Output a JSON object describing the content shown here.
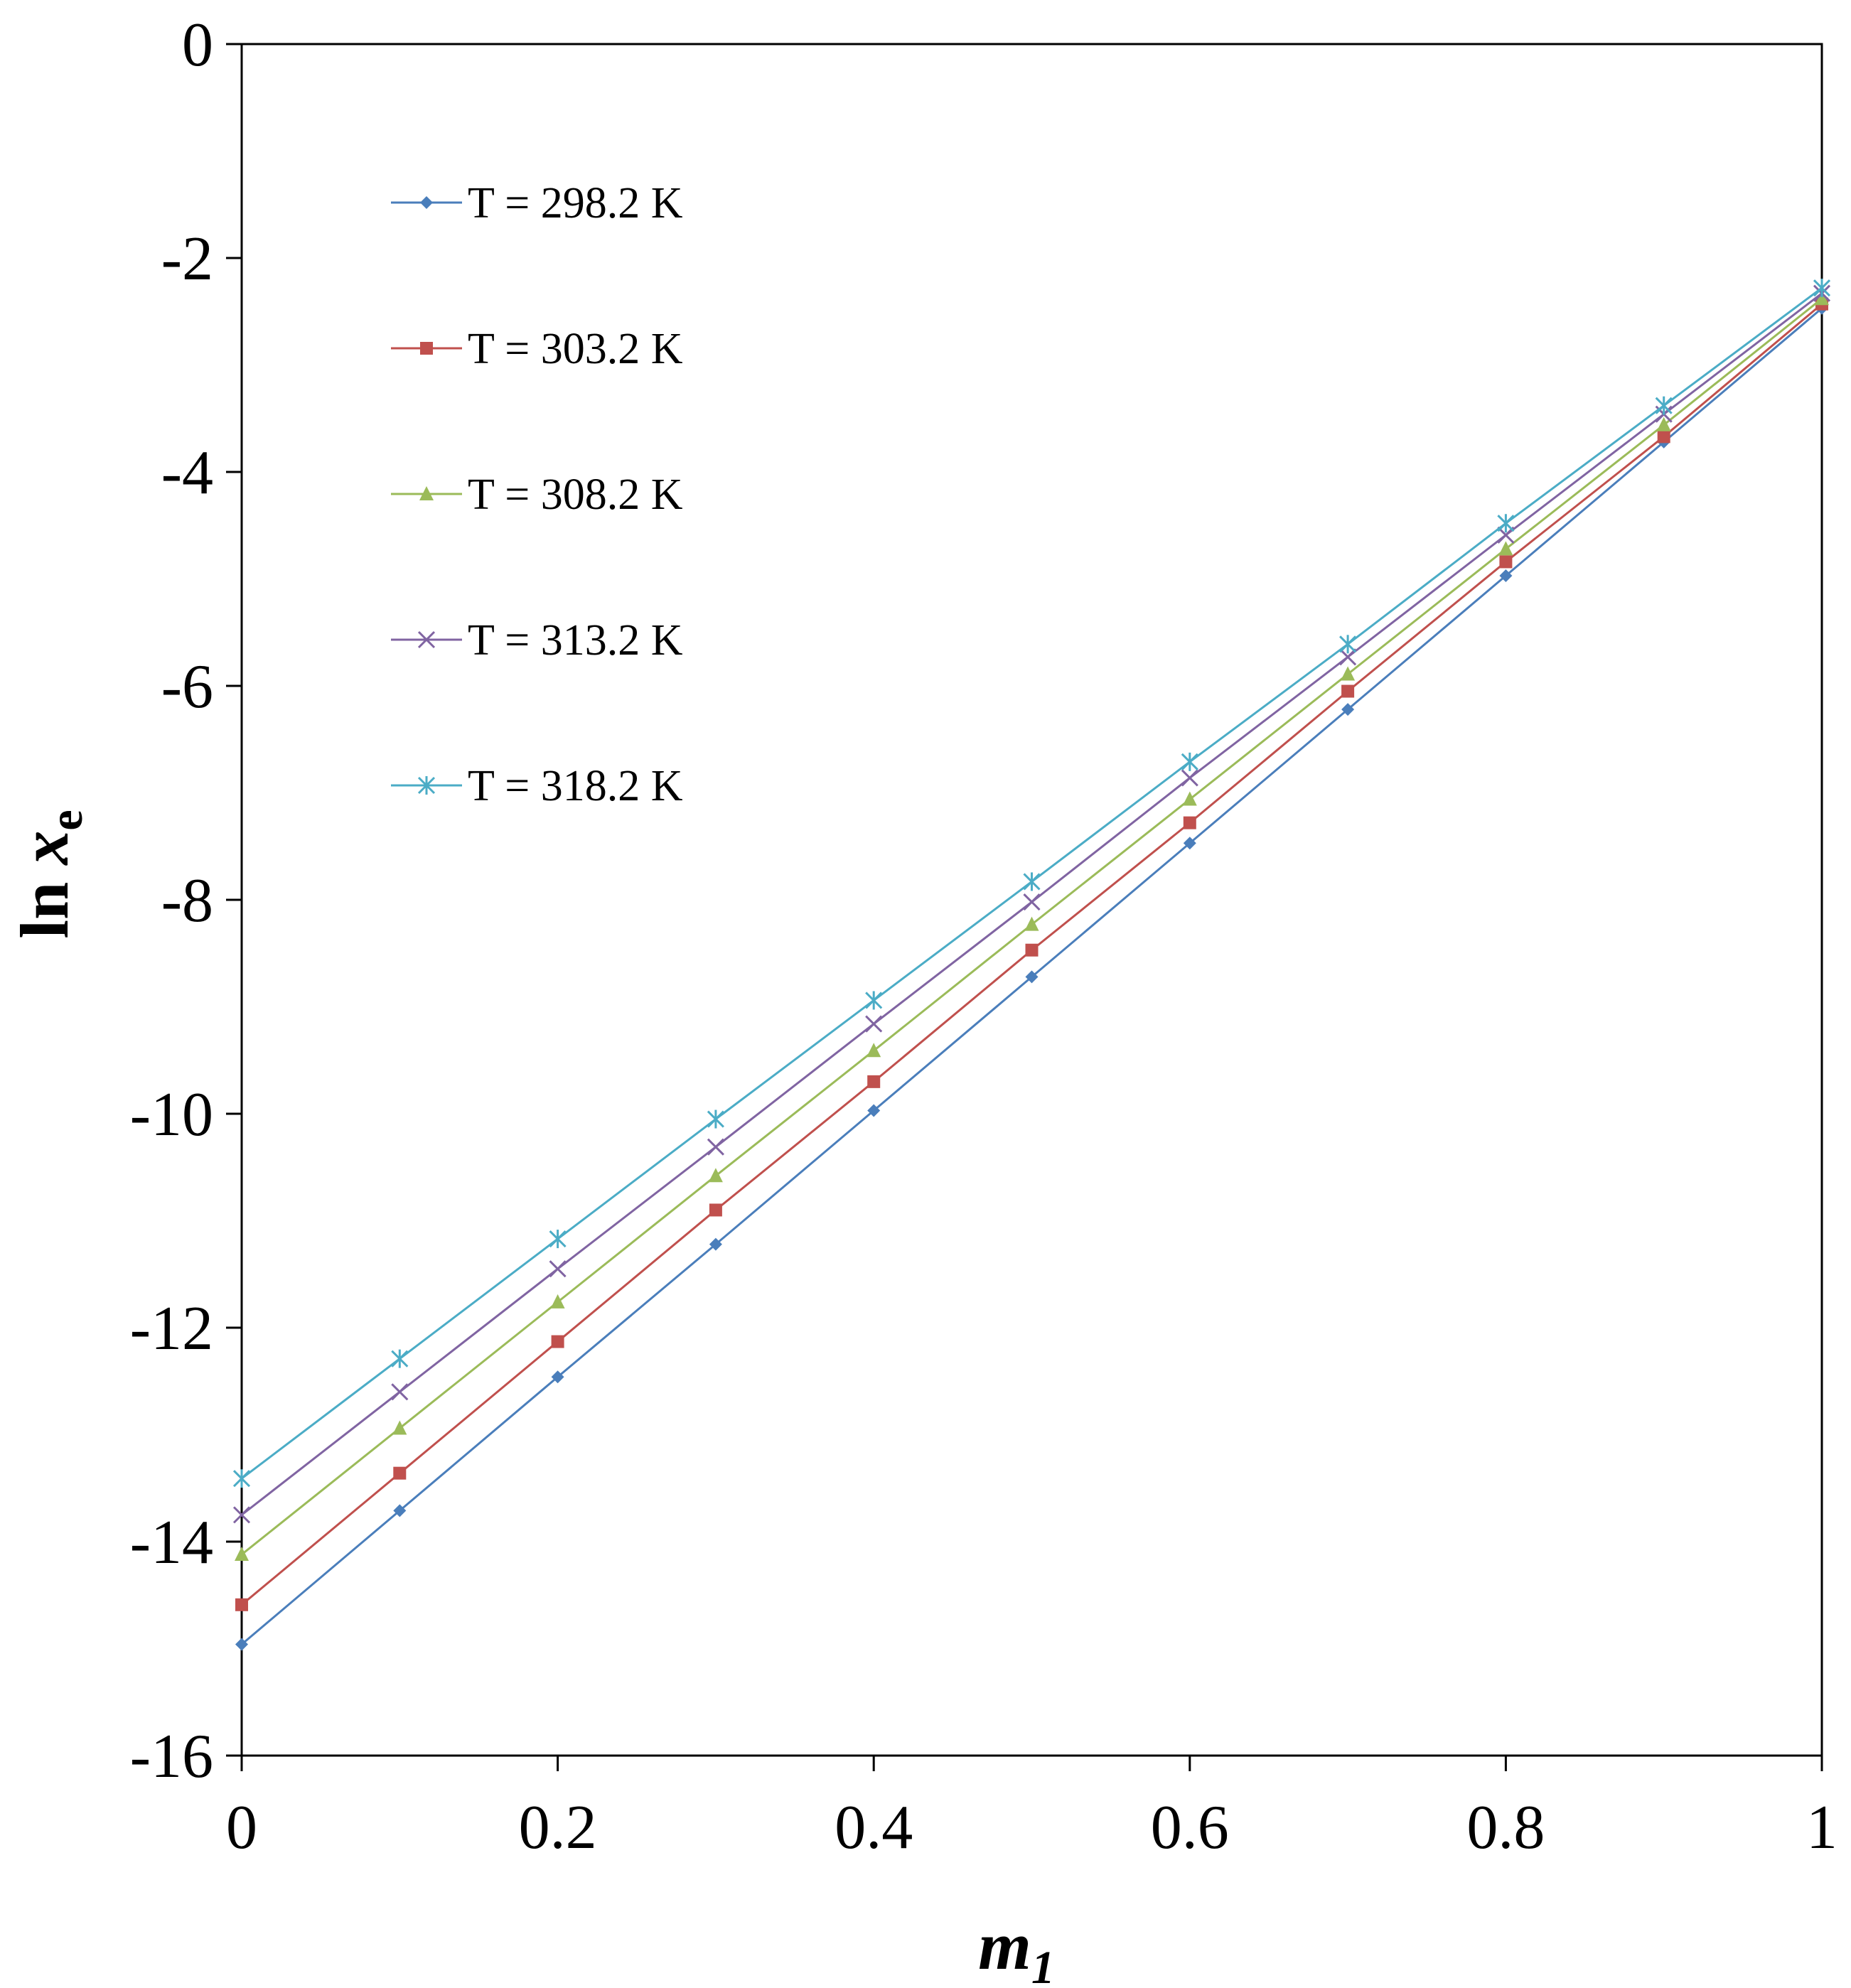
{
  "chart_data": {
    "type": "line",
    "title": "",
    "xlabel": "m1",
    "xlabel_main": "m",
    "xlabel_sub": "1",
    "ylabel": "ln xe",
    "ylabel_prefix": "ln ",
    "ylabel_var": "x",
    "ylabel_sub": "e",
    "xlim": [
      0,
      1
    ],
    "ylim": [
      -16,
      0
    ],
    "xticks": [
      0,
      0.2,
      0.4,
      0.6,
      0.8,
      1
    ],
    "xtick_labels": [
      "0",
      "0.2",
      "0.4",
      "0.6",
      "0.8",
      "1"
    ],
    "yticks": [
      0,
      -2,
      -4,
      -6,
      -8,
      -10,
      -12,
      -14,
      -16
    ],
    "ytick_labels": [
      "0",
      "-2",
      "-4",
      "-6",
      "-8",
      "-10",
      "-12",
      "-14",
      "-16"
    ],
    "grid": false,
    "legend_position": "top-left",
    "x": [
      0,
      0.1,
      0.2,
      0.3,
      0.4,
      0.5,
      0.6,
      0.7,
      0.8,
      0.9,
      1.0
    ],
    "series": [
      {
        "name": "T = 298.2 K",
        "color": "#4A7EBB",
        "marker": "diamond",
        "values": [
          -14.96,
          -13.71,
          -12.46,
          -11.22,
          -9.97,
          -8.72,
          -7.47,
          -6.22,
          -4.97,
          -3.72,
          -2.47
        ]
      },
      {
        "name": "T = 303.2 K",
        "color": "#C0504D",
        "marker": "square",
        "values": [
          -14.59,
          -13.36,
          -12.13,
          -10.9,
          -9.7,
          -8.47,
          -7.28,
          -6.05,
          -4.84,
          -3.67,
          -2.43
        ]
      },
      {
        "name": "T = 308.2 K",
        "color": "#9BBB59",
        "marker": "triangle",
        "values": [
          -14.12,
          -12.94,
          -11.76,
          -10.58,
          -9.41,
          -8.23,
          -7.06,
          -5.89,
          -4.72,
          -3.56,
          -2.38
        ]
      },
      {
        "name": "T = 313.2 K",
        "color": "#8064A2",
        "marker": "x",
        "values": [
          -13.75,
          -12.6,
          -11.45,
          -10.31,
          -9.16,
          -8.02,
          -6.86,
          -5.73,
          -4.59,
          -3.46,
          -2.33
        ]
      },
      {
        "name": "T = 318.2 K",
        "color": "#4BACC6",
        "marker": "star",
        "values": [
          -13.41,
          -12.29,
          -11.17,
          -10.05,
          -8.94,
          -7.83,
          -6.71,
          -5.61,
          -4.48,
          -3.38,
          -2.28
        ]
      }
    ]
  }
}
